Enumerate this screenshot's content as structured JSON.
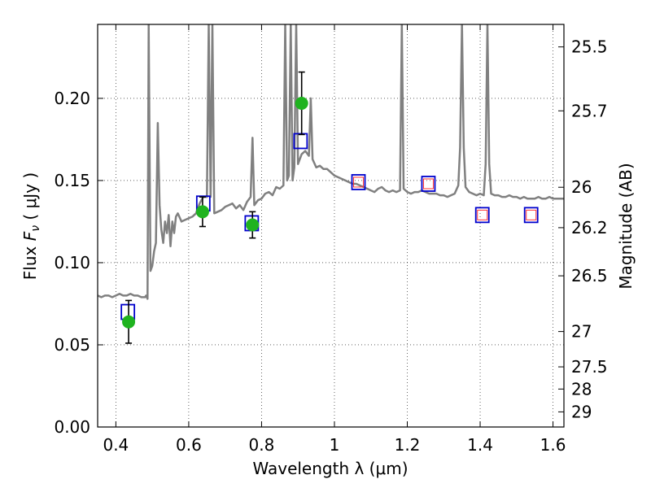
{
  "chart_data": {
    "type": "scatter",
    "xlabel": "Wavelength  λ (μm)",
    "ylabel": "Flux  F_ν  ( μJy )",
    "ylabel_parts": {
      "pre": "Flux  ",
      "sym": "F",
      "sub": "ν",
      "post": "  ( μJy )"
    },
    "y2label": "Magnitude (AB)",
    "xlim": [
      0.35,
      1.63
    ],
    "ylim": [
      0.0,
      0.245
    ],
    "xticks": [
      0.4,
      0.6,
      0.8,
      1.0,
      1.2,
      1.4,
      1.6
    ],
    "xtick_labels": [
      "0.4",
      "0.6",
      "0.8",
      "1",
      "1.2",
      "1.4",
      "1.6"
    ],
    "yticks": [
      0.0,
      0.05,
      0.1,
      0.15,
      0.2
    ],
    "ytick_labels": [
      "0.00",
      "0.05",
      "0.10",
      "0.15",
      "0.20"
    ],
    "y2ticks": [
      {
        "label": "25.5",
        "flux": 0.2313
      },
      {
        "label": "25.7",
        "flux": 0.1924
      },
      {
        "label": "26",
        "flux": 0.1459
      },
      {
        "label": "26.2",
        "flux": 0.1213
      },
      {
        "label": "26.5",
        "flux": 0.092
      },
      {
        "label": "27",
        "flux": 0.0581
      },
      {
        "label": "27.5",
        "flux": 0.0366
      },
      {
        "label": "28",
        "flux": 0.0231
      },
      {
        "label": "29",
        "flux": 0.0092
      }
    ],
    "grid": true,
    "colors": {
      "model": "#808080",
      "observed": "#1fb31f",
      "synthetic_outer": "#0000cc",
      "synthetic_inner": "#ff3333",
      "errorbar": "#000000"
    },
    "series": [
      {
        "kind": "model_spectrum",
        "x": [
          0.35,
          0.36,
          0.37,
          0.38,
          0.39,
          0.4,
          0.41,
          0.42,
          0.43,
          0.44,
          0.45,
          0.46,
          0.47,
          0.48,
          0.483,
          0.487,
          0.49,
          0.495,
          0.5,
          0.505,
          0.51,
          0.515,
          0.52,
          0.525,
          0.53,
          0.535,
          0.54,
          0.545,
          0.55,
          0.555,
          0.56,
          0.565,
          0.57,
          0.58,
          0.59,
          0.6,
          0.61,
          0.62,
          0.63,
          0.64,
          0.65,
          0.655,
          0.66,
          0.665,
          0.67,
          0.68,
          0.69,
          0.7,
          0.71,
          0.72,
          0.73,
          0.74,
          0.75,
          0.76,
          0.77,
          0.775,
          0.78,
          0.79,
          0.8,
          0.81,
          0.82,
          0.83,
          0.84,
          0.85,
          0.86,
          0.865,
          0.87,
          0.875,
          0.88,
          0.885,
          0.89,
          0.895,
          0.9,
          0.91,
          0.92,
          0.93,
          0.935,
          0.94,
          0.95,
          0.96,
          0.97,
          0.98,
          0.99,
          1.0,
          1.01,
          1.02,
          1.03,
          1.04,
          1.05,
          1.06,
          1.07,
          1.08,
          1.09,
          1.1,
          1.11,
          1.12,
          1.13,
          1.14,
          1.15,
          1.16,
          1.17,
          1.18,
          1.185,
          1.19,
          1.2,
          1.21,
          1.22,
          1.23,
          1.24,
          1.25,
          1.26,
          1.27,
          1.28,
          1.29,
          1.3,
          1.31,
          1.32,
          1.33,
          1.34,
          1.345,
          1.35,
          1.355,
          1.36,
          1.37,
          1.38,
          1.39,
          1.4,
          1.41,
          1.415,
          1.42,
          1.425,
          1.43,
          1.44,
          1.45,
          1.46,
          1.47,
          1.48,
          1.49,
          1.5,
          1.51,
          1.52,
          1.53,
          1.54,
          1.55,
          1.56,
          1.57,
          1.58,
          1.59,
          1.6,
          1.61,
          1.62,
          1.63
        ],
        "y": [
          0.08,
          0.079,
          0.08,
          0.08,
          0.079,
          0.08,
          0.081,
          0.08,
          0.08,
          0.081,
          0.08,
          0.08,
          0.079,
          0.079,
          0.08,
          0.078,
          0.245,
          0.095,
          0.098,
          0.107,
          0.112,
          0.185,
          0.135,
          0.12,
          0.112,
          0.125,
          0.118,
          0.129,
          0.11,
          0.125,
          0.118,
          0.128,
          0.13,
          0.125,
          0.126,
          0.127,
          0.128,
          0.13,
          0.136,
          0.14,
          0.14,
          0.245,
          0.14,
          0.245,
          0.13,
          0.131,
          0.132,
          0.134,
          0.135,
          0.136,
          0.133,
          0.135,
          0.132,
          0.137,
          0.14,
          0.176,
          0.135,
          0.138,
          0.139,
          0.142,
          0.143,
          0.141,
          0.146,
          0.145,
          0.147,
          0.245,
          0.15,
          0.153,
          0.245,
          0.15,
          0.158,
          0.245,
          0.16,
          0.166,
          0.168,
          0.165,
          0.2,
          0.163,
          0.158,
          0.159,
          0.157,
          0.157,
          0.155,
          0.153,
          0.152,
          0.151,
          0.15,
          0.149,
          0.148,
          0.148,
          0.147,
          0.146,
          0.145,
          0.144,
          0.143,
          0.145,
          0.146,
          0.144,
          0.143,
          0.144,
          0.143,
          0.144,
          0.245,
          0.145,
          0.143,
          0.142,
          0.143,
          0.143,
          0.144,
          0.143,
          0.142,
          0.142,
          0.142,
          0.141,
          0.141,
          0.14,
          0.141,
          0.142,
          0.147,
          0.17,
          0.245,
          0.17,
          0.146,
          0.143,
          0.142,
          0.141,
          0.142,
          0.141,
          0.16,
          0.245,
          0.16,
          0.142,
          0.141,
          0.141,
          0.14,
          0.14,
          0.141,
          0.14,
          0.14,
          0.139,
          0.14,
          0.139,
          0.139,
          0.139,
          0.14,
          0.139,
          0.139,
          0.14,
          0.139,
          0.139,
          0.139,
          0.139
        ]
      },
      {
        "kind": "observed",
        "x": [
          0.435,
          0.638,
          0.775,
          0.91
        ],
        "y": [
          0.064,
          0.131,
          0.123,
          0.197
        ],
        "yerr": [
          0.013,
          0.009,
          0.008,
          0.019
        ]
      },
      {
        "kind": "synthetic",
        "x": [
          0.433,
          0.64,
          0.773,
          0.907,
          1.066,
          1.258,
          1.406,
          1.54
        ],
        "y": [
          0.07,
          0.136,
          0.124,
          0.174,
          0.149,
          0.148,
          0.129,
          0.129
        ],
        "inner": [
          false,
          false,
          false,
          false,
          true,
          true,
          true,
          true
        ]
      }
    ]
  }
}
